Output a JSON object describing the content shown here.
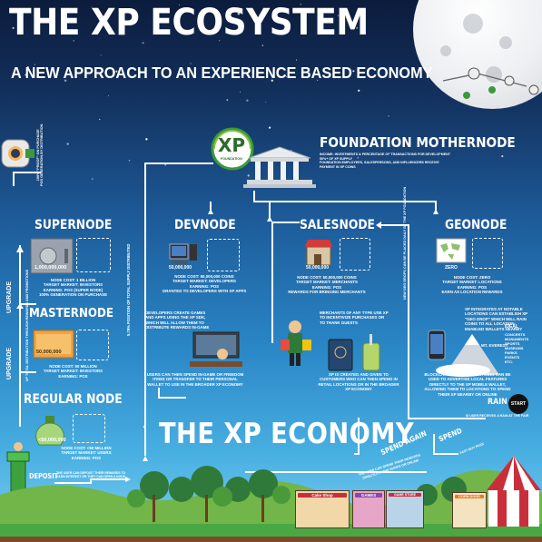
{
  "header": {
    "title": "THE XP ECOSYSTEM",
    "subtitle": "A NEW APPROACH TO AN EXPERIENCE BASED ECONOMY"
  },
  "foundation": {
    "logo_text": "XP",
    "logo_caption": "FOUNDATION",
    "title": "FOUNDATION MOTHERNODE",
    "desc": "INCOME: INVESTMENTS & PERCENTAGE OF TRANSACTIONS FOR DEVELOPMENT\n50%+ OF XP SUPPLY\nFOUNDATION EMPLOYEES, SALESPERSONS, AND INFLUENCERS RECEIVE\nPAYMENT IN XP COINS"
  },
  "nodes": {
    "supernode": {
      "title": "SUPERNODE",
      "amount": "1,000,000,000",
      "desc": "NODE COST: 1 BILLION\nTARGET MARKET: INVESTORS\nEARNING: POS (SUPER NODE)\n100% GENERATION ON PURCHASE"
    },
    "masternode": {
      "title": "MASTERNODE",
      "amount": "50,000,000",
      "desc": "NODE COST: 50 MILLION\nTARGET MARKET: INVESTORS\nEARNING: POS"
    },
    "regular": {
      "title": "REGULAR NODE",
      "amount": "<50,000,000",
      "desc": "NODE COST: <50 MILLION\nTARGET MARKET: USERS\nEARNING: POS"
    },
    "devnode": {
      "title": "DEVNODE",
      "amount": "50,000,000",
      "desc": "NODE COST: 50,000,000 COINS\nTARGET MARKET: DEVELOPERS\nEARNING: POS\nGRANTED TO DEVELOPERS WITH XP APPS"
    },
    "salesnode": {
      "title": "SALESNODE",
      "amount": "50,000,000",
      "desc": "NODE COST: 50,000,000 COINS\nTARGET MARKET: MERCHANTS\nEARNING: POS\nREWARDS FOR BRINGING MERCHANTS"
    },
    "geonode": {
      "title": "GEONODE",
      "amount": "ZERO",
      "desc": "NODE COST: ZERO\nTARGET MARKET: LOCATIONS\nEARNING: POS\nEARN AS LOCATION REWARDS"
    }
  },
  "texts": {
    "dev_apps": "DEVELOPERS CREATE GAMES AND APPS USING THE XP SDK, WHICH WILL ALLOW THEM TO DISTRIBUTE REWARDS IN-GAME",
    "users_spend": "USERS CAN THEN SPEND IN-GAME OR FREEDOM ITEMS OR TRANSFER TO THEIR PERSONAL WALLET TO USE IN THE BROADER XP ECONOMY",
    "merchants": "MERCHANTS OF ANY TYPE USE XP TO INCENTIVIZE PURCHASES OR TO THANK GUESTS",
    "xp_created": "XP IS CREATED AND GIVEN TO CUSTOMERS WHO CAN THEN SPEND IN RETAIL LOCATIONS OR IN THE BROADER XP ECONOMY",
    "geo_locations": "XP INTEGRATES AT NOTABLE LOCATIONS CAN ESTABLISH XP \"GEO DROP\" WHICH WILL RAIN COINS TO ALL LOCATION-ENABLED WALLETS NEARBY",
    "ideal": "IDEAL",
    "ideal_list": "CONCERTS\nMONUMENTS\nSPORTS\nMUSEUMS\nPARKS\nEVENTS\nETC.",
    "mt_everest": "MT. EVEREST",
    "blockchain": "BLOCKCHAIN BASED ADVERTISING CAN BE USED TO ADVERTISE LOCAL FEATURES DIRECTLY TO THE XP MOBILE WALLET, ALLOWING THEM TO LOCATIONS TO SPEND THEIR XP NEARBY OR ONLINE",
    "rain": "RAIN",
    "start": "START",
    "rain_desc": "IS USER RECEIVES A RAIN AT THE FAIR",
    "spend": "SPEND",
    "spend_desc": "FAST BUY PASS",
    "spend_again": "SPEND AGAIN",
    "spend_again_desc": "THE USER CAN SPEND THEIR REWARDS DIRECTLY IN THE SHOPS OR ONLINE",
    "deposit": "DEPOSIT",
    "deposit_desc": "THE USER CAN DEPOSIT THEIR REWARDS TO EARN INTEREST OR THEY CAN OPEN A NODE",
    "xp_economy": "THE XP ECONOMY",
    "upgrade": "UPGRADE",
    "v_left1": "100% \"PROOF\" ON PURCHASE\nPOS GENERATION BY DISTRIBUTION",
    "v_left2": "XP TOTAL DISTRIBUTION THROUGH REWARDS AND PROMOTIONS",
    "v_mid": "5.78% POSITION OF TOTAL SUPPLY DISTRIBUTED",
    "v_geo": "NEW GEO DROPS CAN BE PLACED DAILY BY THE XP FOUNDATION"
  },
  "shops": {
    "cake": "Cake Shop",
    "games": "GAMES",
    "game_store": "GAME STORE",
    "corn": "CORN DOGS"
  },
  "colors": {
    "sky_top": "#0c1c3c",
    "sky_bottom": "#7fcff0",
    "xp_green": "#3a9a3a",
    "grass": "#4aa844",
    "tent_red": "#c92f3a"
  }
}
